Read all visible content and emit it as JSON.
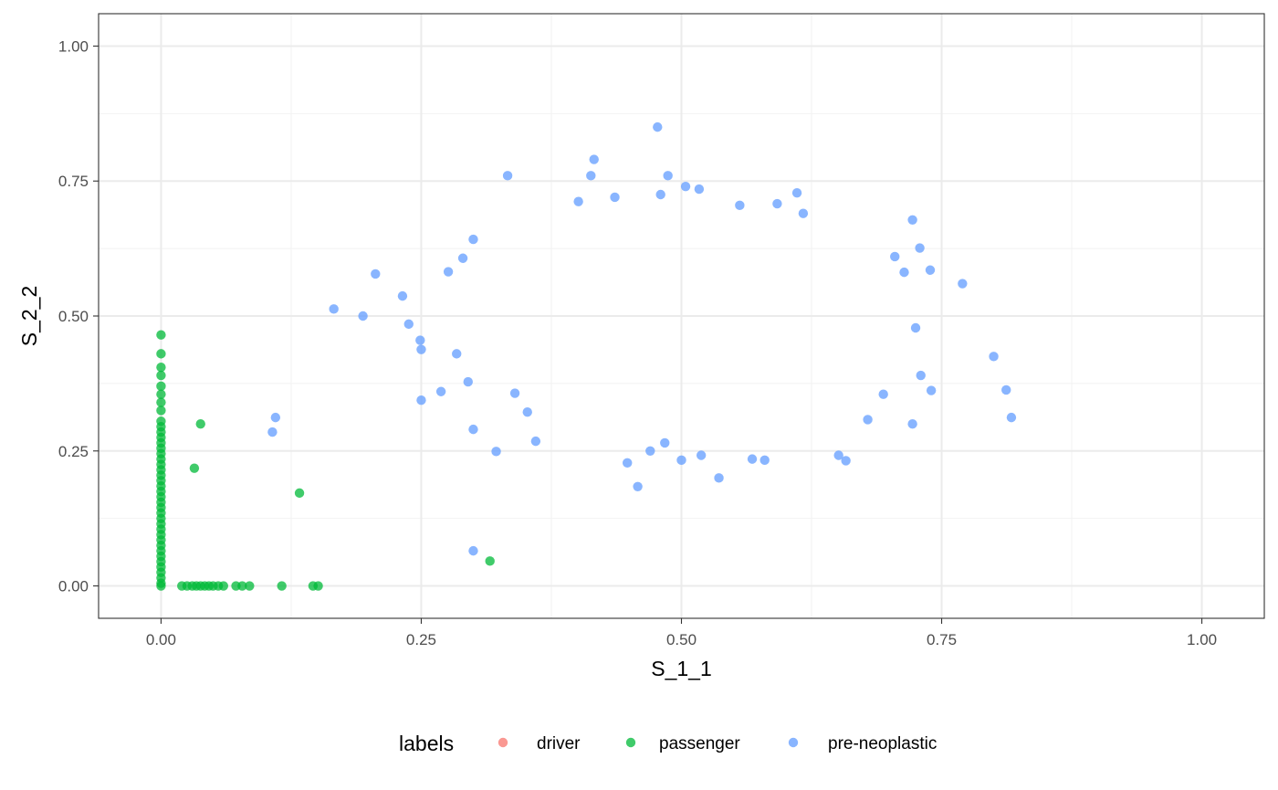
{
  "chart_data": {
    "type": "scatter",
    "xlabel": "S_1_1",
    "ylabel": "S_2_2",
    "xlim": [
      -0.06,
      1.06
    ],
    "ylim": [
      -0.06,
      1.06
    ],
    "x_ticks": [
      0,
      0.25,
      0.5,
      0.75,
      1
    ],
    "y_ticks": [
      0,
      0.25,
      0.5,
      0.75,
      1
    ],
    "x_tick_labels": [
      "0.00",
      "0.25",
      "0.50",
      "0.75",
      "1.00"
    ],
    "y_tick_labels": [
      "0.00",
      "0.25",
      "0.50",
      "0.75",
      "1.00"
    ],
    "grid": true,
    "legend": {
      "title": "labels",
      "position": "bottom",
      "entries": [
        {
          "label": "driver",
          "color": "#F8766D"
        },
        {
          "label": "passenger",
          "color": "#00BA38"
        },
        {
          "label": "pre-neoplastic",
          "color": "#619CFF"
        }
      ]
    },
    "series": [
      {
        "name": "driver",
        "color": "#F8766D",
        "points": []
      },
      {
        "name": "passenger",
        "color": "#00BA38",
        "points": [
          [
            0,
            0.465
          ],
          [
            0,
            0.43
          ],
          [
            0,
            0.405
          ],
          [
            0,
            0.39
          ],
          [
            0,
            0.37
          ],
          [
            0,
            0.355
          ],
          [
            0,
            0.34
          ],
          [
            0,
            0.325
          ],
          [
            0,
            0.305
          ],
          [
            0,
            0.295
          ],
          [
            0,
            0.285
          ],
          [
            0,
            0.275
          ],
          [
            0,
            0.265
          ],
          [
            0,
            0.255
          ],
          [
            0,
            0.245
          ],
          [
            0,
            0.235
          ],
          [
            0,
            0.225
          ],
          [
            0,
            0.215
          ],
          [
            0,
            0.205
          ],
          [
            0,
            0.195
          ],
          [
            0,
            0.185
          ],
          [
            0,
            0.175
          ],
          [
            0,
            0.165
          ],
          [
            0,
            0.155
          ],
          [
            0,
            0.145
          ],
          [
            0,
            0.135
          ],
          [
            0,
            0.125
          ],
          [
            0,
            0.115
          ],
          [
            0,
            0.105
          ],
          [
            0,
            0.095
          ],
          [
            0,
            0.085
          ],
          [
            0,
            0.075
          ],
          [
            0,
            0.065
          ],
          [
            0,
            0.055
          ],
          [
            0,
            0.045
          ],
          [
            0,
            0.035
          ],
          [
            0,
            0.025
          ],
          [
            0,
            0.015
          ],
          [
            0,
            0.005
          ],
          [
            0,
            0
          ],
          [
            0.038,
            0.3
          ],
          [
            0.032,
            0.218
          ],
          [
            0.133,
            0.172
          ],
          [
            0.316,
            0.046
          ],
          [
            0.02,
            0
          ],
          [
            0.025,
            0
          ],
          [
            0.03,
            0
          ],
          [
            0.034,
            0
          ],
          [
            0.038,
            0
          ],
          [
            0.042,
            0
          ],
          [
            0.046,
            0
          ],
          [
            0.05,
            0
          ],
          [
            0.055,
            0
          ],
          [
            0.06,
            0
          ],
          [
            0.072,
            0
          ],
          [
            0.078,
            0
          ],
          [
            0.085,
            0
          ],
          [
            0.116,
            0
          ],
          [
            0.146,
            0
          ],
          [
            0.151,
            0
          ]
        ]
      },
      {
        "name": "pre-neoplastic",
        "color": "#619CFF",
        "points": [
          [
            0.477,
            0.85
          ],
          [
            0.416,
            0.79
          ],
          [
            0.333,
            0.76
          ],
          [
            0.487,
            0.76
          ],
          [
            0.413,
            0.76
          ],
          [
            0.504,
            0.74
          ],
          [
            0.517,
            0.735
          ],
          [
            0.611,
            0.728
          ],
          [
            0.48,
            0.725
          ],
          [
            0.436,
            0.72
          ],
          [
            0.556,
            0.705
          ],
          [
            0.592,
            0.708
          ],
          [
            0.401,
            0.712
          ],
          [
            0.617,
            0.69
          ],
          [
            0.722,
            0.678
          ],
          [
            0.3,
            0.642
          ],
          [
            0.206,
            0.578
          ],
          [
            0.166,
            0.513
          ],
          [
            0.194,
            0.5
          ],
          [
            0.232,
            0.537
          ],
          [
            0.238,
            0.485
          ],
          [
            0.249,
            0.455
          ],
          [
            0.25,
            0.438
          ],
          [
            0.25,
            0.344
          ],
          [
            0.11,
            0.312
          ],
          [
            0.107,
            0.285
          ],
          [
            0.3,
            0.065
          ],
          [
            0.322,
            0.249
          ],
          [
            0.458,
            0.184
          ],
          [
            0.536,
            0.2
          ],
          [
            0.5,
            0.233
          ],
          [
            0.519,
            0.242
          ],
          [
            0.448,
            0.228
          ],
          [
            0.568,
            0.235
          ],
          [
            0.58,
            0.233
          ],
          [
            0.651,
            0.242
          ],
          [
            0.658,
            0.232
          ],
          [
            0.47,
            0.25
          ],
          [
            0.484,
            0.265
          ],
          [
            0.77,
            0.56
          ],
          [
            0.8,
            0.425
          ],
          [
            0.812,
            0.363
          ],
          [
            0.817,
            0.312
          ],
          [
            0.74,
            0.362
          ],
          [
            0.73,
            0.39
          ],
          [
            0.722,
            0.3
          ],
          [
            0.679,
            0.308
          ],
          [
            0.694,
            0.355
          ],
          [
            0.725,
            0.478
          ],
          [
            0.739,
            0.585
          ],
          [
            0.729,
            0.626
          ],
          [
            0.714,
            0.581
          ],
          [
            0.705,
            0.61
          ],
          [
            0.3,
            0.29
          ],
          [
            0.295,
            0.378
          ],
          [
            0.284,
            0.43
          ],
          [
            0.269,
            0.36
          ],
          [
            0.276,
            0.582
          ],
          [
            0.29,
            0.607
          ],
          [
            0.34,
            0.357
          ],
          [
            0.352,
            0.322
          ],
          [
            0.36,
            0.268
          ]
        ]
      }
    ]
  }
}
